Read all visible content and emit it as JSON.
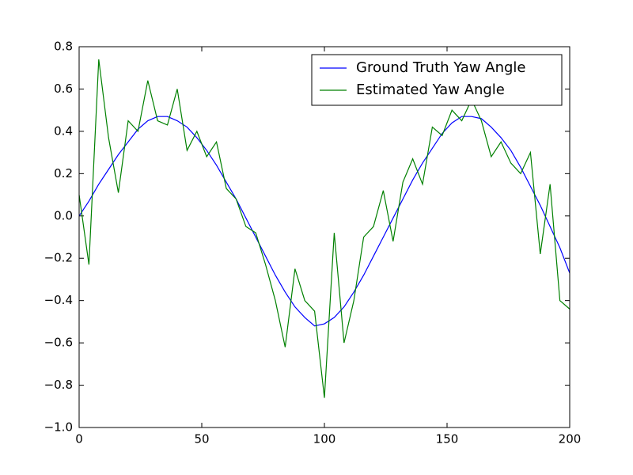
{
  "chart_data": {
    "type": "line",
    "x": [
      0,
      4,
      8,
      12,
      16,
      20,
      24,
      28,
      32,
      36,
      40,
      44,
      48,
      52,
      56,
      60,
      64,
      68,
      72,
      76,
      80,
      84,
      88,
      92,
      96,
      100,
      104,
      108,
      112,
      116,
      120,
      124,
      128,
      132,
      136,
      140,
      144,
      148,
      152,
      156,
      160,
      164,
      168,
      172,
      176,
      180,
      184,
      188,
      192,
      196,
      200
    ],
    "series": [
      {
        "name": "Ground Truth Yaw Angle",
        "color": "#0000ff",
        "values": [
          0.0,
          0.07,
          0.15,
          0.22,
          0.29,
          0.35,
          0.41,
          0.45,
          0.47,
          0.47,
          0.45,
          0.42,
          0.37,
          0.31,
          0.24,
          0.16,
          0.08,
          -0.01,
          -0.1,
          -0.19,
          -0.28,
          -0.36,
          -0.43,
          -0.48,
          -0.52,
          -0.51,
          -0.48,
          -0.43,
          -0.36,
          -0.28,
          -0.19,
          -0.1,
          -0.01,
          0.08,
          0.17,
          0.25,
          0.32,
          0.39,
          0.44,
          0.47,
          0.47,
          0.46,
          0.42,
          0.37,
          0.31,
          0.23,
          0.14,
          0.05,
          -0.05,
          -0.15,
          -0.27
        ]
      },
      {
        "name": "Estimated Yaw Angle",
        "color": "#008000",
        "values": [
          0.1,
          -0.23,
          0.74,
          0.37,
          0.11,
          0.45,
          0.4,
          0.64,
          0.45,
          0.43,
          0.6,
          0.31,
          0.4,
          0.28,
          0.35,
          0.13,
          0.08,
          -0.05,
          -0.08,
          -0.23,
          -0.4,
          -0.62,
          -0.25,
          -0.4,
          -0.45,
          -0.86,
          -0.08,
          -0.6,
          -0.4,
          -0.1,
          -0.05,
          0.12,
          -0.12,
          0.16,
          0.27,
          0.15,
          0.42,
          0.38,
          0.5,
          0.45,
          0.55,
          0.45,
          0.28,
          0.35,
          0.25,
          0.2,
          0.3,
          -0.18,
          0.15,
          -0.4,
          -0.44
        ]
      }
    ],
    "xlim": [
      0,
      200
    ],
    "xticks": [
      0,
      50,
      100,
      150,
      200
    ],
    "ylim": [
      -1.0,
      0.8
    ],
    "yticks": [
      {
        "value": -1.0,
        "label": "−1.0"
      },
      {
        "value": -0.8,
        "label": "−0.8"
      },
      {
        "value": -0.6,
        "label": "−0.6"
      },
      {
        "value": -0.4,
        "label": "−0.4"
      },
      {
        "value": -0.2,
        "label": "−0.2"
      },
      {
        "value": 0,
        "label": "0.0"
      },
      {
        "value": 0.2,
        "label": "0.2"
      },
      {
        "value": 0.4,
        "label": "0.4"
      },
      {
        "value": 0.6,
        "label": "0.6"
      },
      {
        "value": 0.8,
        "label": "0.8"
      }
    ],
    "grid": false,
    "legend": "upper right"
  }
}
